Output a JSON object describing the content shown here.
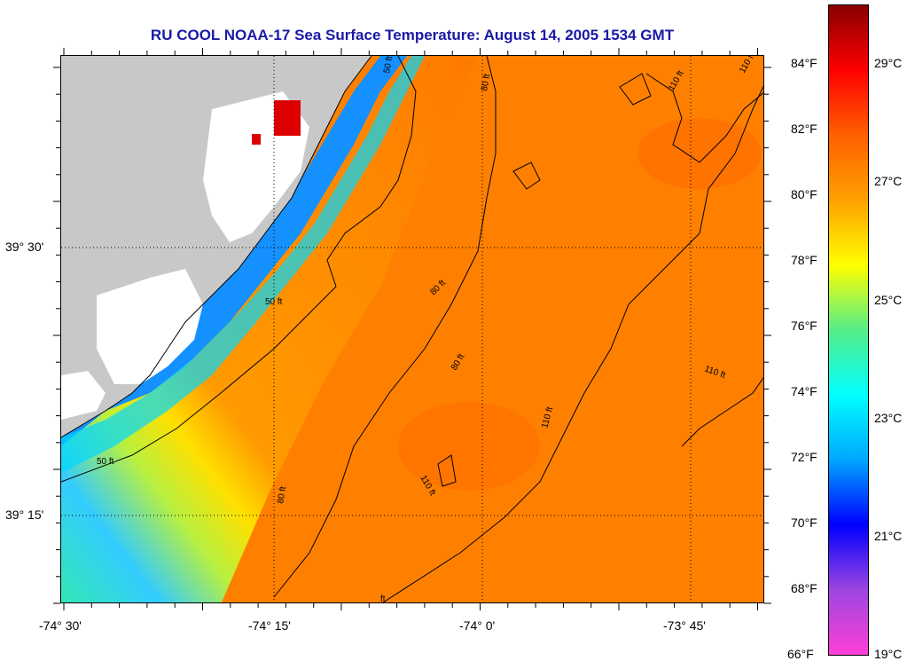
{
  "title": "RU COOL  NOAA-17  Sea Surface Temperature:  August 14, 2005 1534 GMT",
  "map": {
    "longitude_labels": [
      "-74° 30'",
      "-74° 15'",
      "-74° 0'",
      "-73° 45'"
    ],
    "latitude_labels": [
      "39° 30'",
      "39° 15'"
    ],
    "contour_labels": [
      "50 ft",
      "50 ft",
      "50 ft",
      "80 ft",
      "80 ft",
      "80 ft",
      "80 ft",
      "110 ft",
      "110 ft",
      "110 ft",
      "110 ft",
      "110 ft",
      "ft"
    ],
    "land_color": "#c8c8c8",
    "cloud_color": "#ffffff"
  },
  "colorbar": {
    "fahrenheit_labels": [
      "84°F",
      "82°F",
      "80°F",
      "78°F",
      "76°F",
      "74°F",
      "72°F",
      "70°F",
      "68°F",
      "66°F"
    ],
    "celsius_labels": [
      "29°C",
      "27°C",
      "25°C",
      "23°C",
      "21°C",
      "19°C"
    ],
    "range_f": [
      66,
      86
    ],
    "colors": [
      "#ff3fd8",
      "#9e45e0",
      "#0000ff",
      "#00a6ff",
      "#00ffff",
      "#55ee88",
      "#ffff00",
      "#ffa000",
      "#ff6000",
      "#ff0000",
      "#880000"
    ]
  }
}
